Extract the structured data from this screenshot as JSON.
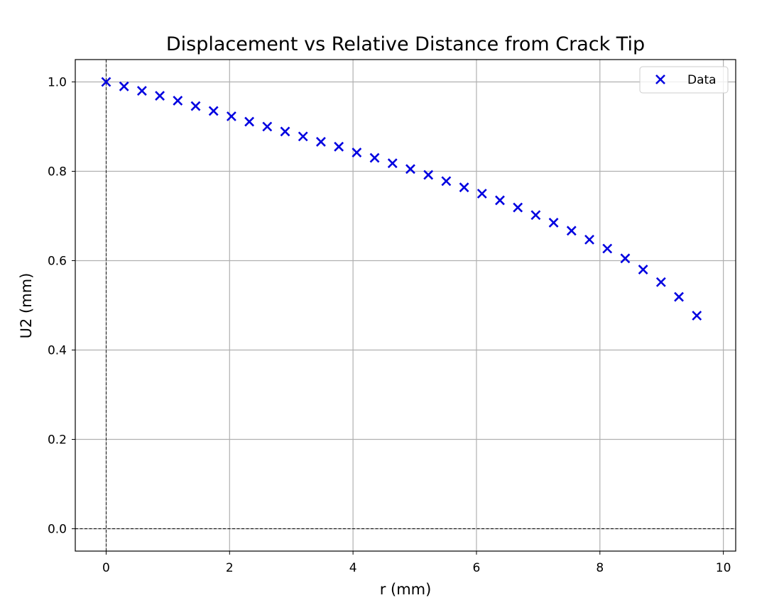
{
  "chart_data": {
    "type": "scatter",
    "title": "Displacement vs Relative Distance from Crack Tip",
    "xlabel": "r (mm)",
    "ylabel": "U2 (mm)",
    "xlim": [
      -0.5,
      10.2
    ],
    "ylim": [
      -0.05,
      1.05
    ],
    "xticks": [
      0,
      2,
      4,
      6,
      8,
      10
    ],
    "yticks": [
      0.0,
      0.2,
      0.4,
      0.6,
      0.8,
      1.0
    ],
    "xtick_labels": [
      "0",
      "2",
      "4",
      "6",
      "8",
      "10"
    ],
    "ytick_labels": [
      "0.0",
      "0.2",
      "0.4",
      "0.6",
      "0.8",
      "1.0"
    ],
    "grid": true,
    "reference_lines": [
      "x = 0 (dashed)",
      "y = 0 (dashed)"
    ],
    "legend": {
      "position": "top-right",
      "entries": [
        "Data"
      ]
    },
    "series": [
      {
        "name": "Data",
        "marker": "x",
        "color": "#0000e0",
        "x": [
          0.0,
          0.29,
          0.58,
          0.87,
          1.16,
          1.45,
          1.74,
          2.03,
          2.32,
          2.61,
          2.9,
          3.19,
          3.48,
          3.77,
          4.06,
          4.35,
          4.64,
          4.93,
          5.22,
          5.51,
          5.8,
          6.09,
          6.38,
          6.67,
          6.96,
          7.25,
          7.54,
          7.83,
          8.12,
          8.41,
          8.7,
          8.99,
          9.28,
          9.57
        ],
        "y": [
          1.0,
          0.99,
          0.98,
          0.969,
          0.958,
          0.946,
          0.935,
          0.923,
          0.911,
          0.9,
          0.889,
          0.878,
          0.866,
          0.855,
          0.842,
          0.83,
          0.818,
          0.805,
          0.792,
          0.778,
          0.764,
          0.75,
          0.735,
          0.719,
          0.702,
          0.685,
          0.667,
          0.647,
          0.627,
          0.605,
          0.58,
          0.552,
          0.519,
          0.477
        ]
      }
    ]
  }
}
